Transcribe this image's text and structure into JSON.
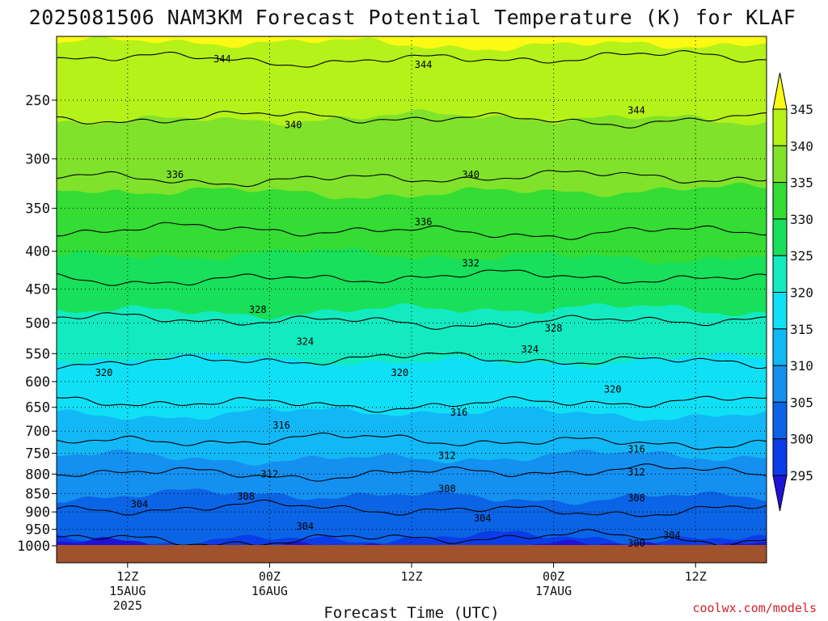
{
  "chart_data": {
    "type": "heatmap",
    "title": "2025081506 NAM3KM Forecast Potential Temperature (K) for KLAF",
    "xlabel": "Forecast Time (UTC)",
    "ylabel": "",
    "pressure_ticks": [
      "250",
      "300",
      "350",
      "400",
      "450",
      "500",
      "550",
      "600",
      "650",
      "700",
      "750",
      "800",
      "850",
      "900",
      "950",
      "1000"
    ],
    "pressure_values": [
      250,
      300,
      350,
      400,
      450,
      500,
      550,
      600,
      650,
      700,
      750,
      800,
      850,
      900,
      950,
      1000
    ],
    "ylim": [
      1000,
      205
    ],
    "y_scale": "log-pressure",
    "time_ticks": [
      {
        "hour": 6,
        "label": "12Z",
        "date": "15AUG",
        "year": "2025"
      },
      {
        "hour": 18,
        "label": "00Z",
        "date": "16AUG",
        "year": ""
      },
      {
        "hour": 30,
        "label": "12Z",
        "date": "",
        "year": ""
      },
      {
        "hour": 42,
        "label": "00Z",
        "date": "17AUG",
        "year": ""
      },
      {
        "hour": 54,
        "label": "12Z",
        "date": "",
        "year": ""
      }
    ],
    "xlim": [
      0,
      60
    ],
    "grid": true,
    "colorbar": {
      "levels": [
        295,
        300,
        305,
        310,
        315,
        320,
        325,
        330,
        335,
        340,
        345
      ],
      "tick_labels": [
        "345",
        "340",
        "335",
        "330",
        "325",
        "320",
        "315",
        "310",
        "305",
        "300",
        "295"
      ],
      "colors": [
        "#1e14d8",
        "#0a3ce8",
        "#0b64e6",
        "#1490f0",
        "#12b8f5",
        "#10e0f5",
        "#13eac0",
        "#18e05a",
        "#34dc34",
        "#80e22a",
        "#b4f21a",
        "#fafa14"
      ]
    },
    "contour_levels": [
      300,
      304,
      308,
      312,
      316,
      320,
      324,
      328,
      332,
      336,
      340,
      344
    ],
    "contour_profile": [
      {
        "pressure": 1000,
        "theta": 298.5
      },
      {
        "pressure": 950,
        "theta": 302.0
      },
      {
        "pressure": 900,
        "theta": 303.8
      },
      {
        "pressure": 850,
        "theta": 305.2
      },
      {
        "pressure": 800,
        "theta": 307.8
      },
      {
        "pressure": 750,
        "theta": 310.5
      },
      {
        "pressure": 700,
        "theta": 313.2
      },
      {
        "pressure": 650,
        "theta": 315.6
      },
      {
        "pressure": 600,
        "theta": 318.0
      },
      {
        "pressure": 550,
        "theta": 320.6
      },
      {
        "pressure": 500,
        "theta": 323.8
      },
      {
        "pressure": 450,
        "theta": 327.0
      },
      {
        "pressure": 400,
        "theta": 330.4
      },
      {
        "pressure": 350,
        "theta": 333.8
      },
      {
        "pressure": 300,
        "theta": 337.4
      },
      {
        "pressure": 250,
        "theta": 341.2
      },
      {
        "pressure": 205,
        "theta": 345.5
      }
    ],
    "contour_labels": [
      {
        "value": "344",
        "hour": 14,
        "pressure": 220
      },
      {
        "value": "344",
        "hour": 31,
        "pressure": 224
      },
      {
        "value": "344",
        "hour": 49,
        "pressure": 258
      },
      {
        "value": "340",
        "hour": 20,
        "pressure": 270
      },
      {
        "value": "340",
        "hour": 35,
        "pressure": 315
      },
      {
        "value": "336",
        "hour": 10,
        "pressure": 315
      },
      {
        "value": "336",
        "hour": 31,
        "pressure": 365
      },
      {
        "value": "332",
        "hour": 35,
        "pressure": 415
      },
      {
        "value": "328",
        "hour": 17,
        "pressure": 480
      },
      {
        "value": "328",
        "hour": 42,
        "pressure": 508
      },
      {
        "value": "324",
        "hour": 21,
        "pressure": 530
      },
      {
        "value": "324",
        "hour": 40,
        "pressure": 543
      },
      {
        "value": "320",
        "hour": 4,
        "pressure": 584
      },
      {
        "value": "320",
        "hour": 29,
        "pressure": 584
      },
      {
        "value": "320",
        "hour": 47,
        "pressure": 615
      },
      {
        "value": "316",
        "hour": 19,
        "pressure": 687
      },
      {
        "value": "316",
        "hour": 34,
        "pressure": 660
      },
      {
        "value": "316",
        "hour": 49,
        "pressure": 740
      },
      {
        "value": "312",
        "hour": 18,
        "pressure": 800
      },
      {
        "value": "312",
        "hour": 33,
        "pressure": 755
      },
      {
        "value": "312",
        "hour": 49,
        "pressure": 795
      },
      {
        "value": "308",
        "hour": 16,
        "pressure": 858
      },
      {
        "value": "308",
        "hour": 33,
        "pressure": 838
      },
      {
        "value": "308",
        "hour": 49,
        "pressure": 862
      },
      {
        "value": "304",
        "hour": 7,
        "pressure": 878
      },
      {
        "value": "304",
        "hour": 21,
        "pressure": 942
      },
      {
        "value": "304",
        "hour": 36,
        "pressure": 918
      },
      {
        "value": "304",
        "hour": 52,
        "pressure": 968
      },
      {
        "value": "300",
        "hour": 49,
        "pressure": 992
      }
    ]
  },
  "footer": {
    "credit": "coolwx.com/models"
  }
}
